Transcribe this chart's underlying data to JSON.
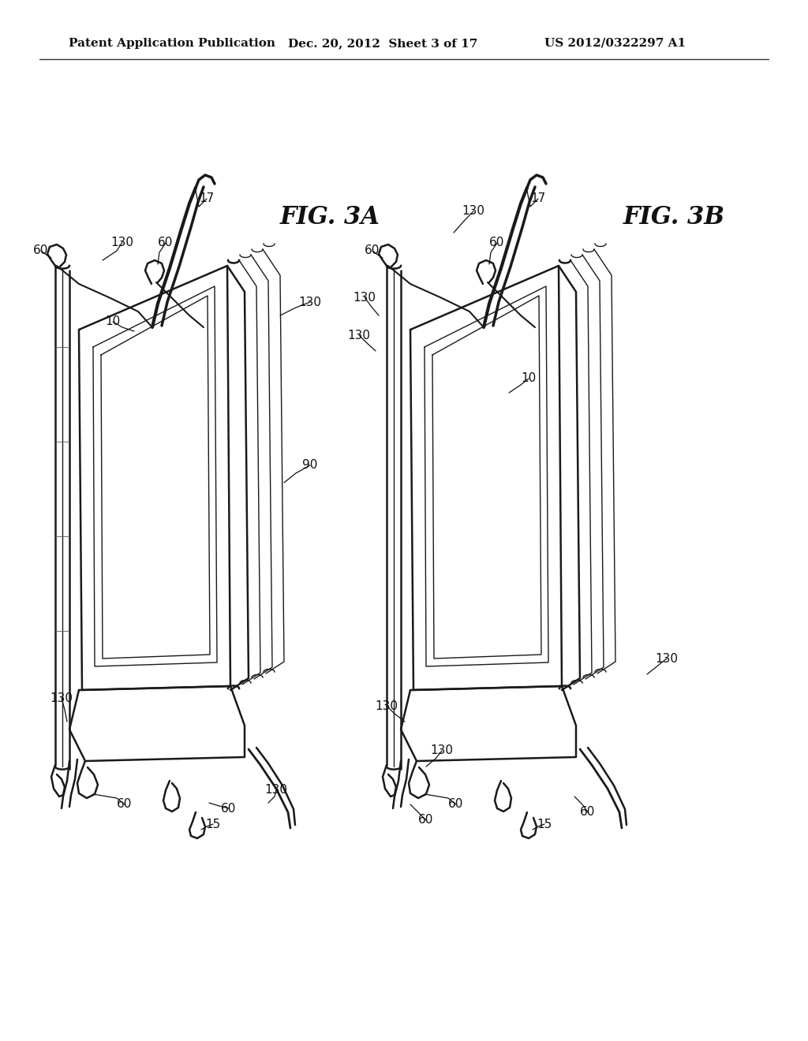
{
  "background_color": "#ffffff",
  "header_left": "Patent Application Publication",
  "header_center": "Dec. 20, 2012  Sheet 3 of 17",
  "header_right": "US 2012/0322297 A1",
  "fig3a_label": "FIG. 3A",
  "fig3b_label": "FIG. 3B",
  "line_color": "#1a1a1a",
  "line_width": 1.8,
  "thin_line": 1.0,
  "label_fontsize": 11,
  "fig_label_fontsize": 22,
  "header_fontsize": 11,
  "lc_gray": "#888888"
}
